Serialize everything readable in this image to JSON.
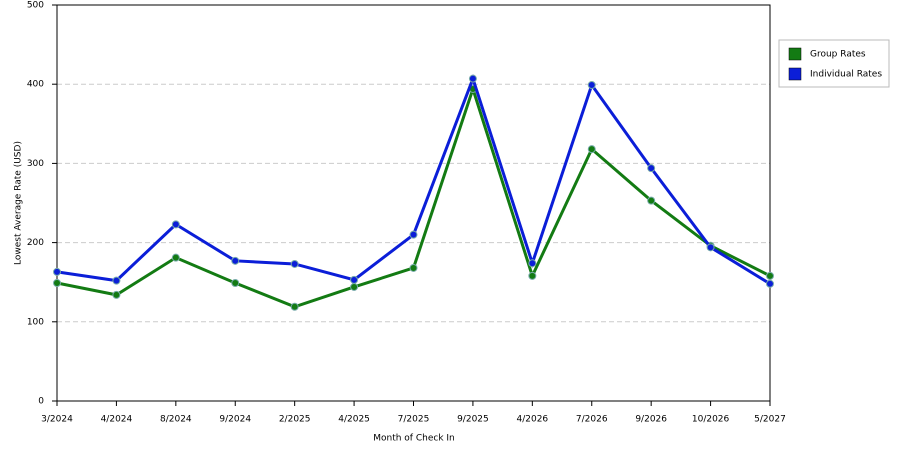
{
  "chart_data": {
    "type": "line",
    "x_label": "Month of Check In",
    "y_label": "Lowest Average Rate (USD)",
    "categories": [
      "3/2024",
      "4/2024",
      "8/2024",
      "9/2024",
      "2/2025",
      "4/2025",
      "7/2025",
      "9/2025",
      "4/2026",
      "7/2026",
      "9/2026",
      "10/2026",
      "5/2027"
    ],
    "series": [
      {
        "name": "Group Rates",
        "color": "#137b13",
        "values": [
          149,
          134,
          181,
          149,
          119,
          144,
          168,
          394,
          158,
          318,
          253,
          196,
          158
        ]
      },
      {
        "name": "Individual Rates",
        "color": "#0b1ed8",
        "values": [
          163,
          152,
          223,
          177,
          173,
          153,
          210,
          407,
          174,
          399,
          294,
          194,
          148
        ]
      }
    ],
    "ylim": [
      0,
      500
    ],
    "yticks": [
      0,
      100,
      200,
      300,
      400,
      500
    ],
    "grid": true,
    "legend": "right"
  }
}
